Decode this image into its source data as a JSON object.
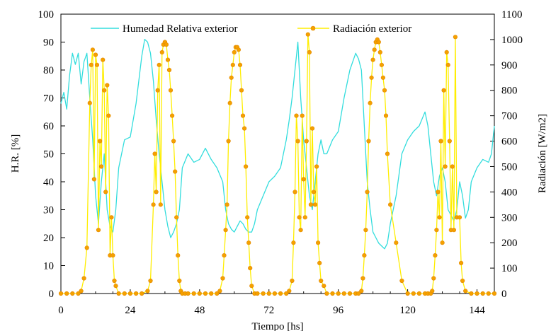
{
  "chart_data": {
    "type": "line",
    "title": "",
    "xlabel": "Tiempo [hs]",
    "ylabel_left": "H.R. [%]",
    "ylabel_right": "Radiación [W/m2]",
    "xlim": [
      0,
      150
    ],
    "ylim_left": [
      0,
      100
    ],
    "ylim_right": [
      0,
      1100
    ],
    "x_ticks": [
      0,
      24,
      48,
      72,
      96,
      120,
      144
    ],
    "y_left_ticks": [
      0,
      10,
      20,
      30,
      40,
      50,
      60,
      70,
      80,
      90,
      100
    ],
    "y_right_ticks": [
      0,
      100,
      200,
      300,
      400,
      500,
      600,
      700,
      800,
      900,
      1000,
      1100
    ],
    "legend_position": "top",
    "grid": false,
    "series": [
      {
        "name": "Humedad Relativa exterior",
        "axis": "left",
        "color": "#33dddd",
        "marker": "none",
        "x": [
          0,
          1,
          2,
          3,
          4,
          5,
          6,
          7,
          8,
          9,
          10,
          11,
          12,
          13,
          14,
          15,
          16,
          17,
          18,
          19,
          20,
          22,
          24,
          26,
          28,
          29,
          30,
          31,
          32,
          33,
          34,
          35,
          36,
          37,
          38,
          39,
          40,
          41,
          42,
          44,
          46,
          48,
          50,
          52,
          54,
          56,
          57,
          58,
          59,
          60,
          61,
          62,
          63,
          64,
          65,
          66,
          67,
          68,
          70,
          72,
          74,
          76,
          78,
          79,
          80,
          81,
          82,
          83,
          84,
          85,
          86,
          87,
          88,
          89,
          90,
          91,
          92,
          94,
          96,
          98,
          100,
          102,
          103,
          104,
          105,
          106,
          107,
          108,
          109,
          110,
          111,
          112,
          113,
          114,
          115,
          116,
          118,
          120,
          122,
          124,
          126,
          127,
          128,
          129,
          130,
          131,
          132,
          133,
          134,
          135,
          136,
          137,
          138,
          139,
          140,
          141,
          142,
          144,
          146,
          148,
          149,
          150
        ],
        "values": [
          68,
          72,
          66,
          78,
          86,
          82,
          86,
          75,
          83,
          86,
          70,
          55,
          35,
          25,
          40,
          50,
          30,
          24,
          22,
          30,
          45,
          55,
          56,
          68,
          85,
          91,
          90,
          86,
          76,
          62,
          50,
          40,
          30,
          24,
          20,
          22,
          25,
          30,
          45,
          50,
          47,
          48,
          52,
          48,
          45,
          40,
          30,
          25,
          23,
          22,
          24,
          26,
          25,
          23,
          22,
          22,
          25,
          30,
          35,
          40,
          42,
          45,
          55,
          62,
          70,
          80,
          90,
          70,
          55,
          45,
          35,
          30,
          40,
          50,
          55,
          50,
          50,
          55,
          58,
          70,
          80,
          86,
          84,
          80,
          60,
          40,
          30,
          22,
          20,
          18,
          17,
          16,
          18,
          25,
          30,
          35,
          50,
          55,
          58,
          60,
          65,
          60,
          50,
          40,
          35,
          42,
          45,
          40,
          30,
          28,
          26,
          30,
          40,
          35,
          27,
          30,
          40,
          45,
          48,
          47,
          50,
          60
        ]
      },
      {
        "name": "Radiación exterior",
        "axis": "right",
        "color": "#ffee00",
        "marker_color": "#f5a000",
        "marker": "circle",
        "x": [
          0,
          2,
          4,
          6,
          7,
          8,
          9,
          10,
          10.5,
          11,
          11.5,
          12,
          12.5,
          13,
          13.5,
          14,
          14.5,
          15,
          15.5,
          16,
          16.5,
          17,
          17.5,
          18,
          18.5,
          19,
          20,
          22,
          24,
          26,
          28,
          30,
          31,
          32,
          32.5,
          33,
          33.5,
          34,
          34.5,
          35,
          35.5,
          36,
          36.5,
          37,
          37.5,
          38,
          38.5,
          39,
          39.5,
          40,
          40.5,
          41,
          41.5,
          42,
          43,
          44,
          46,
          48,
          50,
          52,
          54,
          55,
          56,
          56.5,
          57,
          57.5,
          58,
          58.5,
          59,
          59.5,
          60,
          60.5,
          61,
          61.5,
          62,
          62.5,
          63,
          63.5,
          64,
          64.5,
          65,
          65.5,
          66,
          67,
          68,
          70,
          72,
          74,
          76,
          78,
          79,
          80,
          80.5,
          81,
          81.5,
          82,
          82.5,
          83,
          83.5,
          84,
          84.5,
          85,
          85.5,
          86,
          86.5,
          87,
          87.5,
          88,
          88.5,
          89,
          89.5,
          90,
          91,
          92,
          94,
          96,
          98,
          100,
          102,
          103,
          104,
          104.5,
          105,
          105.5,
          106,
          106.5,
          107,
          107.5,
          108,
          108.5,
          109,
          109.5,
          110,
          110.5,
          111,
          111.5,
          112,
          112.5,
          113,
          114,
          116,
          118,
          120,
          122,
          124,
          126,
          127,
          128,
          128.5,
          129,
          129.5,
          130,
          130.5,
          131,
          131.5,
          132,
          132.5,
          133,
          133.5,
          134,
          134.5,
          135,
          135.5,
          136,
          136.5,
          137,
          138,
          138.5,
          139,
          140,
          142,
          144,
          146,
          148,
          150
        ],
        "values": [
          0,
          0,
          0,
          0,
          10,
          60,
          180,
          750,
          900,
          960,
          450,
          940,
          900,
          250,
          600,
          500,
          920,
          800,
          400,
          820,
          700,
          150,
          300,
          150,
          50,
          30,
          0,
          0,
          0,
          0,
          0,
          10,
          50,
          350,
          550,
          400,
          800,
          900,
          350,
          950,
          980,
          990,
          980,
          920,
          880,
          800,
          700,
          600,
          480,
          300,
          150,
          50,
          10,
          0,
          0,
          0,
          0,
          0,
          0,
          0,
          0,
          10,
          60,
          150,
          250,
          350,
          600,
          750,
          850,
          900,
          950,
          970,
          970,
          960,
          900,
          800,
          700,
          650,
          500,
          300,
          200,
          100,
          30,
          0,
          0,
          0,
          0,
          0,
          0,
          0,
          10,
          50,
          200,
          400,
          700,
          600,
          300,
          250,
          700,
          450,
          300,
          600,
          1020,
          950,
          350,
          650,
          400,
          350,
          500,
          200,
          120,
          50,
          30,
          0,
          0,
          0,
          0,
          0,
          0,
          0,
          10,
          60,
          150,
          250,
          400,
          600,
          750,
          850,
          920,
          960,
          990,
          1000,
          990,
          950,
          900,
          850,
          800,
          700,
          550,
          350,
          200,
          50,
          0,
          0,
          0,
          0,
          0,
          0,
          10,
          60,
          150,
          250,
          400,
          300,
          600,
          200,
          800,
          500,
          950,
          900,
          600,
          250,
          500,
          250,
          1010,
          300,
          300,
          120,
          50,
          10,
          0,
          0,
          0,
          0,
          0
        ]
      }
    ]
  }
}
